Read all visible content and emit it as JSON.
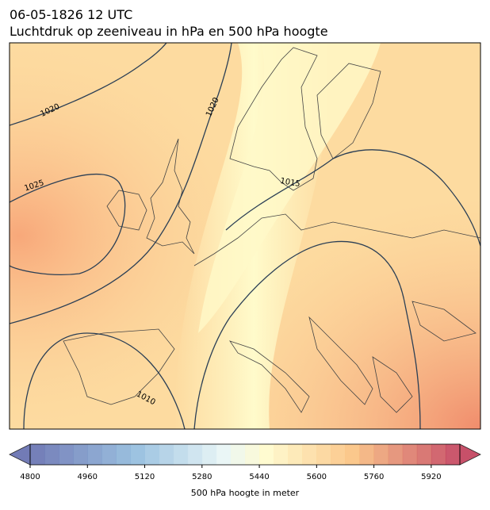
{
  "header": {
    "date": "06-05-1826 12 UTC",
    "title": "Luchtdruk op zeeniveau in hPa en 500 hPa hoogte"
  },
  "isobar_labels": [
    1020,
    1020,
    1025,
    1015,
    1010
  ],
  "colorbar": {
    "min": 4800,
    "max": 6000,
    "step": 40,
    "ticks": [
      4800,
      4960,
      5120,
      5280,
      5440,
      5600,
      5760,
      5920
    ],
    "label": "500 hPa hoogte in meter"
  }
}
